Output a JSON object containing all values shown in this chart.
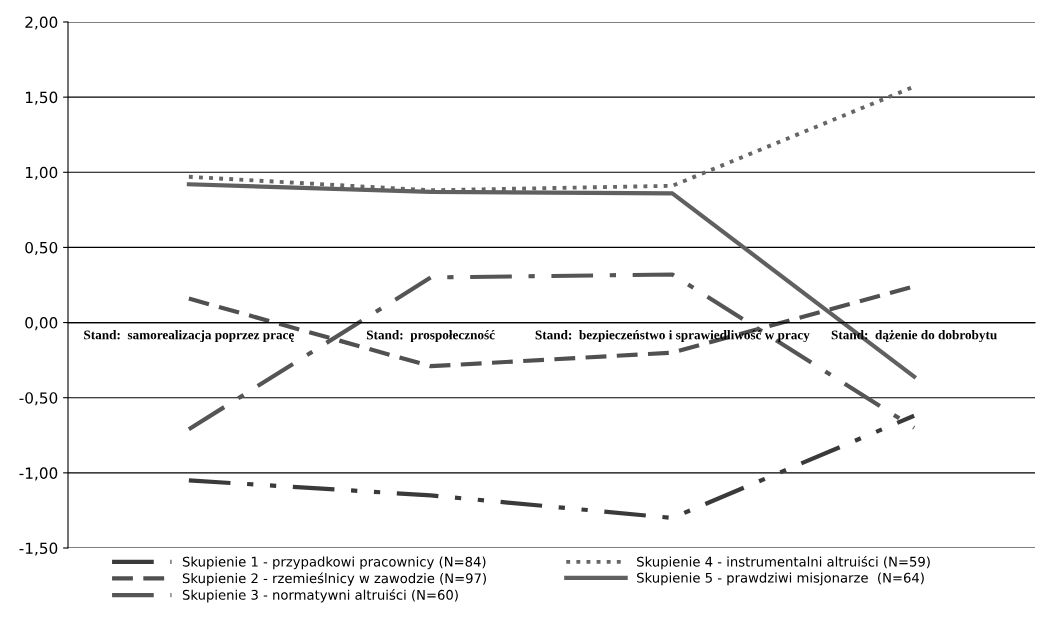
{
  "chart_data": {
    "type": "line",
    "categories": [
      "Stand:  samorealizacja poprzez pracę",
      "Stand:  prospołeczność",
      "Stand:  bezpieczeństwo i sprawiedliwość w pracy",
      "Stand:  dążenie do dobrobytu"
    ],
    "series": [
      {
        "name": "Skupienie 1 - przypadkowi pracownicy (N=84)",
        "color": "#3a3a3a",
        "line_style": "dashdotdot",
        "values": [
          -1.05,
          -1.15,
          -1.3,
          -0.62
        ]
      },
      {
        "name": "Skupienie 2 - rzemieślnicy w zawodzie (N=97)",
        "color": "#505050",
        "line_style": "dashed",
        "values": [
          0.16,
          -0.29,
          -0.2,
          0.24
        ]
      },
      {
        "name": "Skupienie 3 - normatywni altruiści (N=60)",
        "color": "#555555",
        "line_style": "dashdot",
        "values": [
          -0.71,
          0.3,
          0.32,
          -0.7
        ]
      },
      {
        "name": "Skupienie 4 - instrumentalni altruiści (N=59)",
        "color": "#666666",
        "line_style": "dotted",
        "values": [
          0.97,
          0.88,
          0.91,
          1.57
        ]
      },
      {
        "name": "Skupienie 5 - prawdziwi misjonarze  (N=64)",
        "color": "#606060",
        "line_style": "solid",
        "values": [
          0.92,
          0.87,
          0.86,
          -0.36
        ]
      }
    ],
    "ylim": [
      -1.5,
      2.0
    ],
    "yticks": [
      {
        "value": -1.5,
        "label": "-1,50"
      },
      {
        "value": -1.0,
        "label": "-1,00"
      },
      {
        "value": -0.5,
        "label": "-0,50"
      },
      {
        "value": 0,
        "label": "0,00"
      },
      {
        "value": 0.5,
        "label": "0,50"
      },
      {
        "value": 1.0,
        "label": "1,00"
      },
      {
        "value": 1.5,
        "label": "1,50"
      },
      {
        "value": 2.0,
        "label": "2,00"
      }
    ],
    "grid": "y",
    "legend": "bottom",
    "marker": "none"
  }
}
